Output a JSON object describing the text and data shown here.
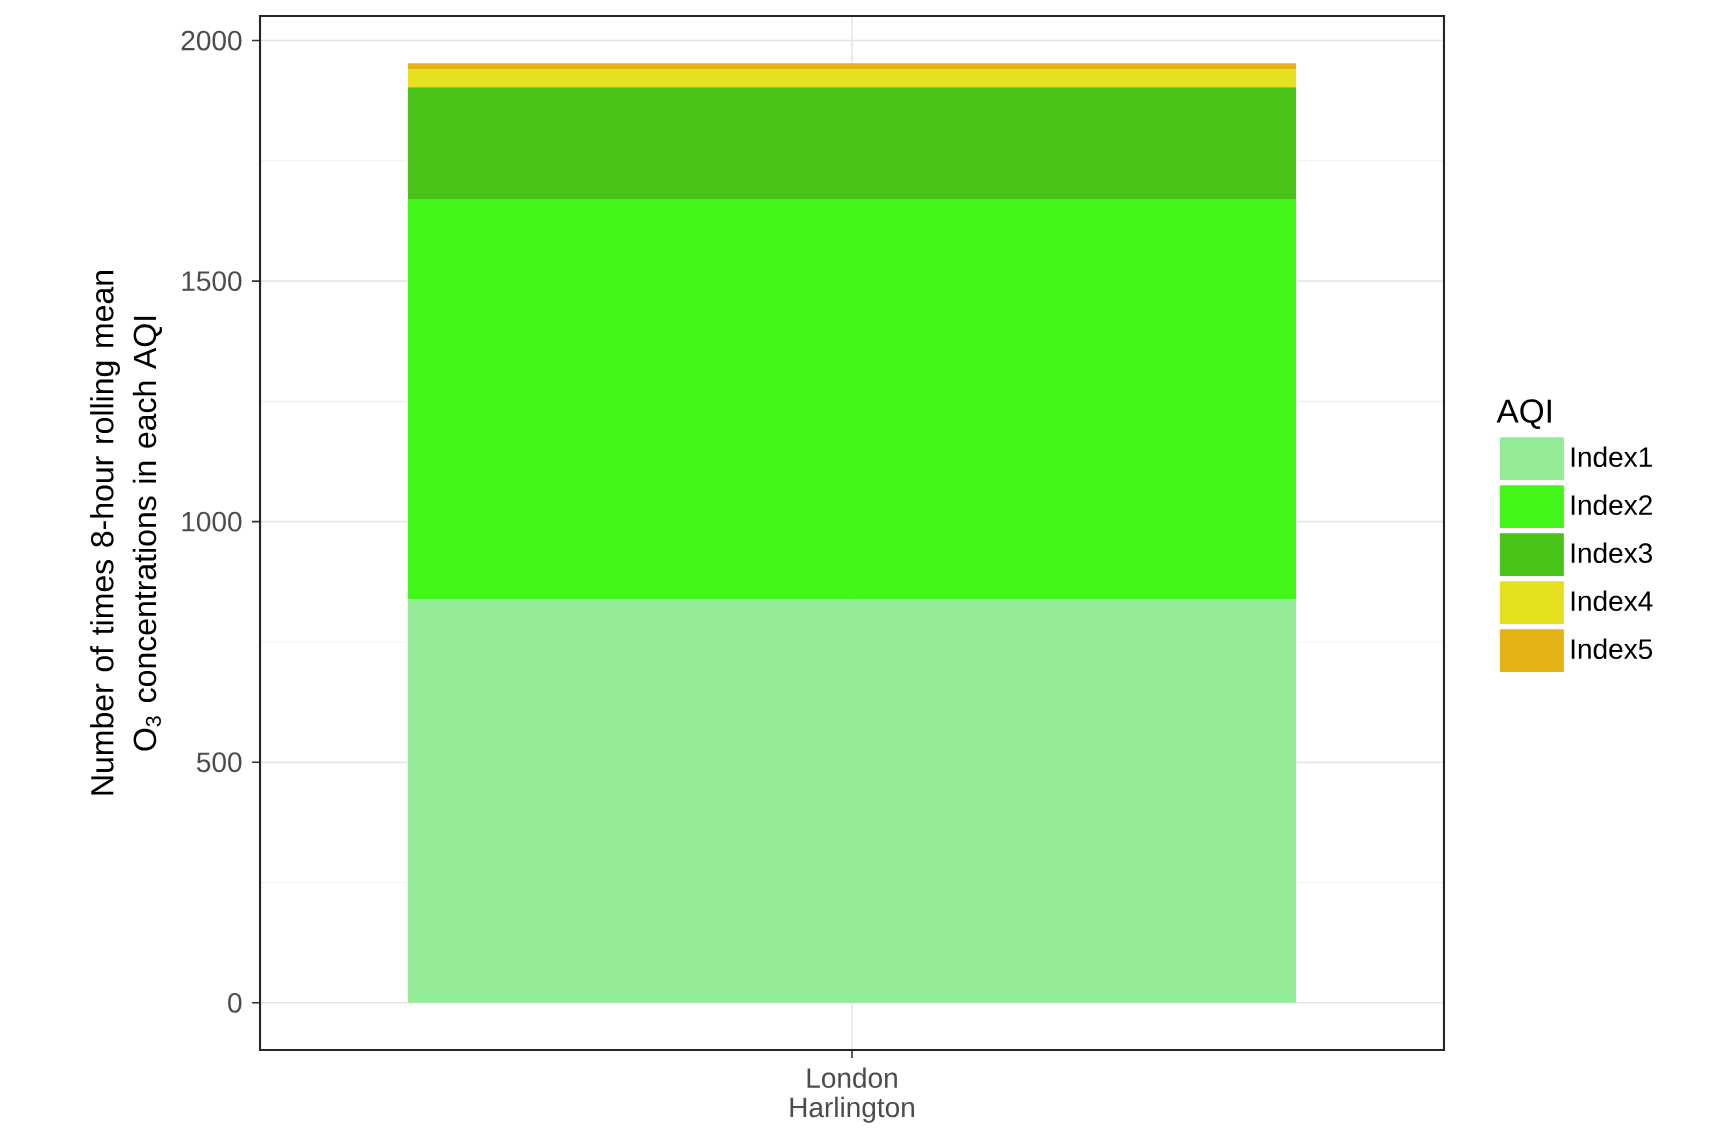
{
  "chart_data": {
    "type": "bar",
    "stacked": true,
    "ylabel": "Number of times 8-hour rolling mean O$_{3}$ concentrations in each AQI",
    "legend_title": "AQI",
    "categories": [
      "London Harlington"
    ],
    "series": [
      {
        "name": "Index1",
        "color": "#93eb98",
        "values": [
          838
        ]
      },
      {
        "name": "Index2",
        "color": "#43f61a",
        "values": [
          831
        ]
      },
      {
        "name": "Index3",
        "color": "#4ac319",
        "values": [
          234
        ]
      },
      {
        "name": "Index4",
        "color": "#e5e020",
        "values": [
          38
        ]
      },
      {
        "name": "Index5",
        "color": "#e5b216",
        "values": [
          12
        ]
      }
    ],
    "ylim": [
      -98,
      2051
    ],
    "yticks": [
      0,
      500,
      1000,
      1500,
      2000
    ],
    "grid": true,
    "legend": "right"
  }
}
